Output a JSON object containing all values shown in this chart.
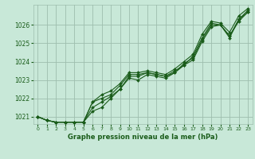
{
  "title": "Graphe pression niveau de la mer (hPa)",
  "background_color": "#c8e8d8",
  "plot_bg_color": "#c8e8d8",
  "grid_color": "#9dbdad",
  "line_color": "#1a5c1a",
  "marker_color": "#1a5c1a",
  "xlim": [
    -0.5,
    23.5
  ],
  "ylim": [
    1020.6,
    1027.1
  ],
  "yticks": [
    1021,
    1022,
    1023,
    1024,
    1025,
    1026
  ],
  "xticks": [
    0,
    1,
    2,
    3,
    4,
    5,
    6,
    7,
    8,
    9,
    10,
    11,
    12,
    13,
    14,
    15,
    16,
    17,
    18,
    19,
    20,
    21,
    22,
    23
  ],
  "series": [
    [
      1021.0,
      1020.8,
      1020.7,
      1020.7,
      1020.7,
      1020.7,
      1021.8,
      1022.0,
      1022.2,
      1022.7,
      1023.3,
      1023.3,
      1023.4,
      1023.3,
      1023.2,
      1023.5,
      1023.8,
      1024.3,
      1025.3,
      1026.1,
      1026.0,
      1025.3,
      1026.3,
      1026.7
    ],
    [
      1021.0,
      1020.8,
      1020.7,
      1020.7,
      1020.7,
      1020.7,
      1021.5,
      1021.8,
      1022.1,
      1022.5,
      1023.2,
      1023.2,
      1023.4,
      1023.3,
      1023.2,
      1023.4,
      1023.9,
      1024.2,
      1025.2,
      1026.0,
      1026.0,
      1025.4,
      1026.3,
      1026.8
    ],
    [
      1021.0,
      1020.8,
      1020.7,
      1020.7,
      1020.7,
      1020.7,
      1021.3,
      1021.5,
      1022.0,
      1022.5,
      1023.1,
      1023.0,
      1023.3,
      1023.2,
      1023.1,
      1023.4,
      1023.8,
      1024.1,
      1025.1,
      1025.9,
      1026.0,
      1025.4,
      1026.2,
      1026.7
    ],
    [
      1021.0,
      1020.8,
      1020.7,
      1020.7,
      1020.7,
      1020.7,
      1021.8,
      1022.2,
      1022.4,
      1022.8,
      1023.4,
      1023.4,
      1023.5,
      1023.4,
      1023.3,
      1023.6,
      1024.0,
      1024.4,
      1025.5,
      1026.2,
      1026.1,
      1025.6,
      1026.5,
      1026.9
    ]
  ]
}
